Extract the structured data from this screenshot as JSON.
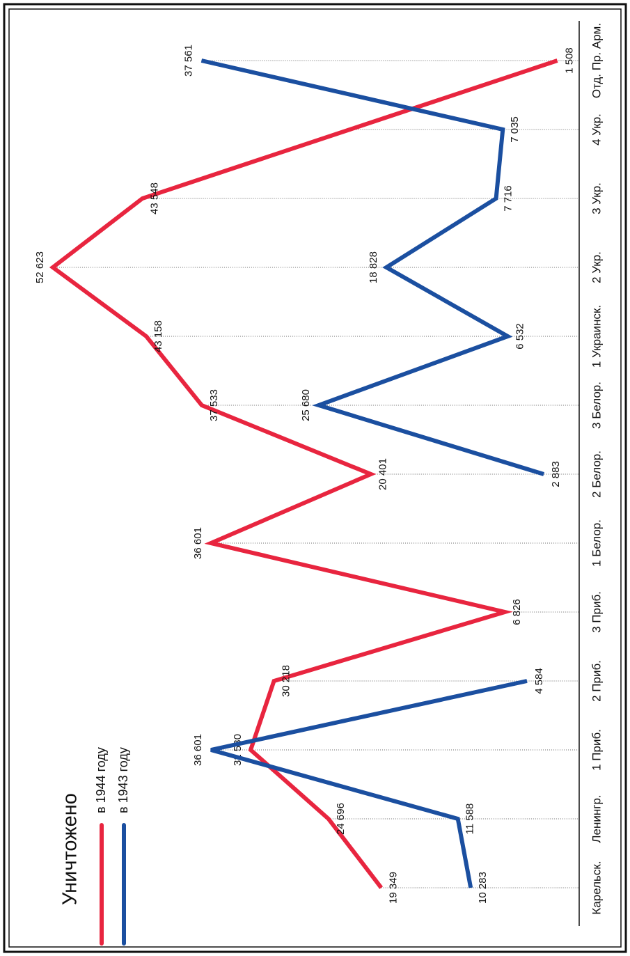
{
  "chart_data": {
    "type": "line",
    "title": "Уничтожено",
    "categories": [
      "Карельск.",
      "Ленингр.",
      "1 Приб.",
      "2 Приб.",
      "3 Приб.",
      "1 Белор.",
      "2 Белор.",
      "3 Белор.",
      "1 Украинск.",
      "2 Укр.",
      "3 Укр.",
      "4 Укр.",
      "Отд. Пр. Арм."
    ],
    "series": [
      {
        "name": "в 1944 году",
        "color": "#e8253f",
        "values": [
          19349,
          24696,
          32580,
          30218,
          6826,
          36601,
          20401,
          37533,
          43158,
          52623,
          43548,
          22528,
          1508
        ],
        "value_labels": [
          "19 349",
          "24 696",
          "32 580",
          "30 218",
          "6 826",
          "36 601",
          "20 401",
          "37 533",
          "43 158",
          "52 623",
          "43 548",
          null,
          "1 508"
        ]
      },
      {
        "name": "в 1943 году",
        "color": "#1b4fa0",
        "values": [
          10283,
          11588,
          36601,
          4584,
          null,
          null,
          2883,
          25680,
          6532,
          18828,
          7716,
          7035,
          37561
        ],
        "value_labels": [
          "10 283",
          "11 588",
          "36 601",
          "4 584",
          null,
          null,
          "2 883",
          "25 680",
          "6 532",
          "18 828",
          "7 716",
          "7 035",
          "37 561"
        ]
      }
    ],
    "ylim": [
      0,
      56000
    ]
  }
}
